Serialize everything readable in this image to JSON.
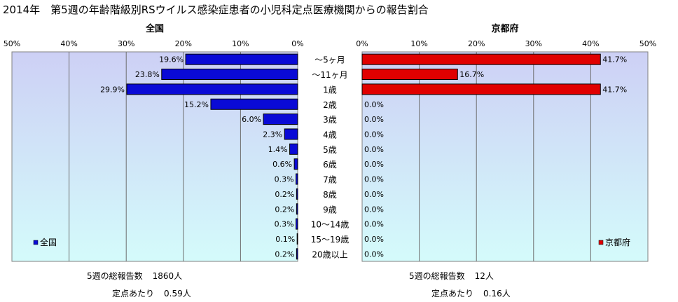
{
  "title": "2014年　第5週の年齢階級別RSウイルス感染症患者の小児科定点医療機関からの報告割合",
  "colors": {
    "plot_bg_top": "#cdd0f5",
    "plot_bg_bottom": "#d4fbfb",
    "zenkoku": "#0a0ad6",
    "kyoto": "#e00000"
  },
  "chart_data": [
    {
      "type": "bar",
      "orientation": "horizontal",
      "direction": "reversed",
      "title": "全国",
      "xlim": [
        0,
        50
      ],
      "xticks": [
        "50%",
        "40%",
        "30%",
        "20%",
        "10%",
        "0%"
      ],
      "grid": true,
      "legend_position": "bottom-left",
      "categories": [
        "～5ヶ月",
        "～11ヶ月",
        "1歳",
        "2歳",
        "3歳",
        "4歳",
        "5歳",
        "6歳",
        "7歳",
        "8歳",
        "9歳",
        "10～14歳",
        "15～19歳",
        "20歳以上"
      ],
      "series": [
        {
          "name": "全国",
          "values": [
            19.6,
            23.8,
            29.9,
            15.2,
            6.0,
            2.3,
            1.4,
            0.6,
            0.3,
            0.2,
            0.2,
            0.3,
            0.1,
            0.2
          ],
          "labels": [
            "19.6%",
            "23.8%",
            "29.9%",
            "15.2%",
            "6.0%",
            "2.3%",
            "1.4%",
            "0.6%",
            "0.3%",
            "0.2%",
            "0.2%",
            "0.3%",
            "0.1%",
            "0.2%"
          ]
        }
      ]
    },
    {
      "type": "bar",
      "orientation": "horizontal",
      "title": "京都府",
      "xlim": [
        0,
        50
      ],
      "xticks": [
        "0%",
        "10%",
        "20%",
        "30%",
        "40%",
        "50%"
      ],
      "grid": true,
      "legend_position": "bottom-right",
      "categories": [
        "～5ヶ月",
        "～11ヶ月",
        "1歳",
        "2歳",
        "3歳",
        "4歳",
        "5歳",
        "6歳",
        "7歳",
        "8歳",
        "9歳",
        "10～14歳",
        "15～19歳",
        "20歳以上"
      ],
      "series": [
        {
          "name": "京都府",
          "values": [
            41.7,
            16.7,
            41.7,
            0,
            0,
            0,
            0,
            0,
            0,
            0,
            0,
            0,
            0,
            0
          ],
          "labels": [
            "41.7%",
            "16.7%",
            "41.7%",
            "0.0%",
            "0.0%",
            "0.0%",
            "0.0%",
            "0.0%",
            "0.0%",
            "0.0%",
            "0.0%",
            "0.0%",
            "0.0%",
            "0.0%"
          ]
        }
      ]
    }
  ],
  "footer": {
    "zenkoku": {
      "total_label": "5週の総報告数",
      "total_value": "1860人",
      "per_label": "定点あたり",
      "per_value": "0.59人"
    },
    "kyoto": {
      "total_label": "5週の総報告数",
      "total_value": "12人",
      "per_label": "定点あたり",
      "per_value": "0.16人"
    }
  }
}
